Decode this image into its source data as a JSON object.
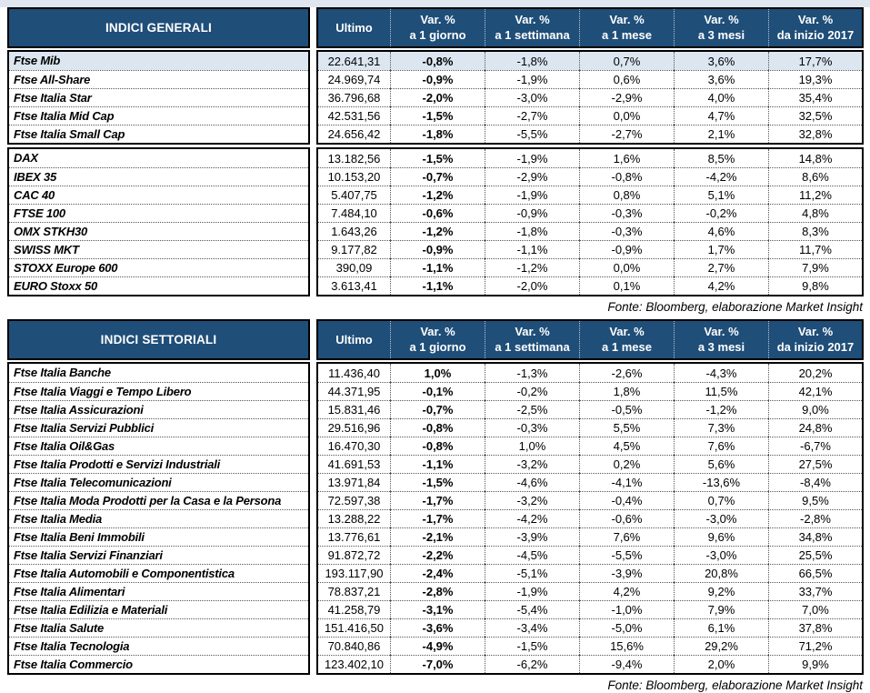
{
  "colors": {
    "header_bg": "#1f4e79",
    "highlight_row": "#dce6f1",
    "page_margin": "#dfe6ef"
  },
  "source_note": "Fonte: Bloomberg, elaborazione Market Insight",
  "tables": [
    {
      "title": "INDICI GENERALI",
      "columns": [
        {
          "l1": "Ultimo",
          "l2": ""
        },
        {
          "l1": "Var. %",
          "l2": "a 1 giorno"
        },
        {
          "l1": "Var. %",
          "l2": "a 1 settimana"
        },
        {
          "l1": "Var. %",
          "l2": "a 1 mese"
        },
        {
          "l1": "Var. %",
          "l2": "a 3 mesi"
        },
        {
          "l1": "Var. %",
          "l2": "da inizio 2017"
        }
      ],
      "fonte": "Fonte: Bloomberg, elaborazione Market Insight",
      "groups": [
        [
          {
            "name": "Ftse Mib",
            "highlight": true,
            "values": [
              "22.641,31",
              "-0,8%",
              "-1,8%",
              "0,7%",
              "3,6%",
              "17,7%"
            ]
          },
          {
            "name": "Ftse All-Share",
            "values": [
              "24.969,74",
              "-0,9%",
              "-1,9%",
              "0,6%",
              "3,6%",
              "19,3%"
            ]
          },
          {
            "name": "Ftse Italia Star",
            "values": [
              "36.796,68",
              "-2,0%",
              "-3,0%",
              "-2,9%",
              "4,0%",
              "35,4%"
            ]
          },
          {
            "name": "Ftse Italia Mid Cap",
            "values": [
              "42.531,56",
              "-1,5%",
              "-2,7%",
              "0,0%",
              "4,7%",
              "32,5%"
            ]
          },
          {
            "name": "Ftse Italia Small Cap",
            "values": [
              "24.656,42",
              "-1,8%",
              "-5,5%",
              "-2,7%",
              "2,1%",
              "32,8%"
            ]
          }
        ],
        [
          {
            "name": "DAX",
            "values": [
              "13.182,56",
              "-1,5%",
              "-1,9%",
              "1,6%",
              "8,5%",
              "14,8%"
            ]
          },
          {
            "name": "IBEX 35",
            "values": [
              "10.153,20",
              "-0,7%",
              "-2,9%",
              "-0,8%",
              "-4,2%",
              "8,6%"
            ]
          },
          {
            "name": "CAC 40",
            "values": [
              "5.407,75",
              "-1,2%",
              "-1,9%",
              "0,8%",
              "5,1%",
              "11,2%"
            ]
          },
          {
            "name": "FTSE 100",
            "values": [
              "7.484,10",
              "-0,6%",
              "-0,9%",
              "-0,3%",
              "-0,2%",
              "4,8%"
            ]
          },
          {
            "name": "OMX STKH30",
            "values": [
              "1.643,26",
              "-1,2%",
              "-1,8%",
              "-0,3%",
              "4,6%",
              "8,3%"
            ]
          },
          {
            "name": "SWISS MKT",
            "values": [
              "9.177,82",
              "-0,9%",
              "-1,1%",
              "-0,9%",
              "1,7%",
              "11,7%"
            ]
          },
          {
            "name": "STOXX Europe 600",
            "values": [
              "390,09",
              "-1,1%",
              "-1,2%",
              "0,0%",
              "2,7%",
              "7,9%"
            ]
          },
          {
            "name": "EURO Stoxx 50",
            "values": [
              "3.613,41",
              "-1,1%",
              "-2,0%",
              "0,1%",
              "4,2%",
              "9,8%"
            ]
          }
        ]
      ]
    },
    {
      "title": "INDICI SETTORIALI",
      "columns": [
        {
          "l1": "Ultimo",
          "l2": ""
        },
        {
          "l1": "Var. %",
          "l2": "a 1 giorno"
        },
        {
          "l1": "Var. %",
          "l2": "a 1 settimana"
        },
        {
          "l1": "Var. %",
          "l2": "a 1 mese"
        },
        {
          "l1": "Var. %",
          "l2": "a 3 mesi"
        },
        {
          "l1": "Var. %",
          "l2": "da inizio 2017"
        }
      ],
      "fonte": "Fonte: Bloomberg, elaborazione Market Insight",
      "groups": [
        [
          {
            "name": "Ftse Italia Banche",
            "values": [
              "11.436,40",
              "1,0%",
              "-1,3%",
              "-2,6%",
              "-4,3%",
              "20,2%"
            ]
          },
          {
            "name": "Ftse Italia Viaggi e Tempo Libero",
            "values": [
              "44.371,95",
              "-0,1%",
              "-0,2%",
              "1,8%",
              "11,5%",
              "42,1%"
            ]
          },
          {
            "name": "Ftse Italia Assicurazioni",
            "values": [
              "15.831,46",
              "-0,7%",
              "-2,5%",
              "-0,5%",
              "-1,2%",
              "9,0%"
            ]
          },
          {
            "name": "Ftse Italia Servizi Pubblici",
            "values": [
              "29.516,96",
              "-0,8%",
              "-0,3%",
              "5,5%",
              "7,3%",
              "24,8%"
            ]
          },
          {
            "name": "Ftse Italia Oil&Gas",
            "values": [
              "16.470,30",
              "-0,8%",
              "1,0%",
              "4,5%",
              "7,6%",
              "-6,7%"
            ]
          },
          {
            "name": "Ftse Italia Prodotti e Servizi Industriali",
            "values": [
              "41.691,53",
              "-1,1%",
              "-3,2%",
              "0,2%",
              "5,6%",
              "27,5%"
            ]
          },
          {
            "name": "Ftse Italia Telecomunicazioni",
            "values": [
              "13.971,84",
              "-1,5%",
              "-4,6%",
              "-4,1%",
              "-13,6%",
              "-8,4%"
            ]
          },
          {
            "name": "Ftse Italia Moda Prodotti per la Casa e la Persona",
            "values": [
              "72.597,38",
              "-1,7%",
              "-3,2%",
              "-0,4%",
              "0,7%",
              "9,5%"
            ]
          },
          {
            "name": "Ftse Italia Media",
            "values": [
              "13.288,22",
              "-1,7%",
              "-4,2%",
              "-0,6%",
              "-3,0%",
              "-2,8%"
            ]
          },
          {
            "name": "Ftse Italia Beni Immobili",
            "values": [
              "13.776,61",
              "-2,1%",
              "-3,9%",
              "7,6%",
              "9,6%",
              "34,8%"
            ]
          },
          {
            "name": "Ftse Italia Servizi Finanziari",
            "values": [
              "91.872,72",
              "-2,2%",
              "-4,5%",
              "-5,5%",
              "-3,0%",
              "25,5%"
            ]
          },
          {
            "name": "Ftse Italia Automobili e Componentistica",
            "values": [
              "193.117,90",
              "-2,4%",
              "-5,1%",
              "-3,9%",
              "20,8%",
              "66,5%"
            ]
          },
          {
            "name": "Ftse Italia Alimentari",
            "values": [
              "78.837,21",
              "-2,8%",
              "-1,9%",
              "4,2%",
              "9,2%",
              "33,7%"
            ]
          },
          {
            "name": "Ftse Italia Edilizia e Materiali",
            "values": [
              "41.258,79",
              "-3,1%",
              "-5,4%",
              "-1,0%",
              "7,9%",
              "7,0%"
            ]
          },
          {
            "name": "Ftse Italia Salute",
            "values": [
              "151.416,50",
              "-3,6%",
              "-3,4%",
              "-5,0%",
              "6,1%",
              "37,8%"
            ]
          },
          {
            "name": "Ftse Italia Tecnologia",
            "values": [
              "70.840,86",
              "-4,9%",
              "-1,5%",
              "15,6%",
              "29,2%",
              "71,2%"
            ]
          },
          {
            "name": "Ftse Italia Commercio",
            "values": [
              "123.402,10",
              "-7,0%",
              "-6,2%",
              "-9,4%",
              "2,0%",
              "9,9%"
            ]
          }
        ]
      ]
    }
  ]
}
